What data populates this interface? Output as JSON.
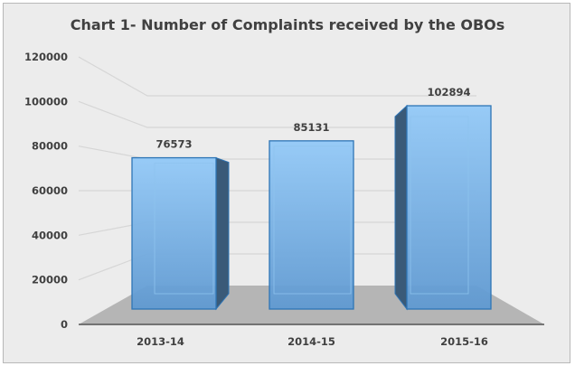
{
  "chart_data": {
    "type": "bar",
    "title": "Chart 1- Number of Complaints received by the OBOs",
    "categories": [
      "2013-14",
      "2014-15",
      "2015-16"
    ],
    "values": [
      76573,
      85131,
      102894
    ],
    "data_labels": [
      "76573",
      "85131",
      "102894"
    ],
    "xlabel": "",
    "ylabel": "",
    "ylim": [
      0,
      120000
    ],
    "yticks": [
      "0",
      "20000",
      "40000",
      "60000",
      "80000",
      "100000",
      "120000"
    ],
    "grid": true,
    "legend": "none",
    "style": "3d-column",
    "colors": {
      "bar": "#6fa8dc",
      "bar_light": "#8cc4f5",
      "bar_edge": "#2e75b6",
      "bar_side": "#3a5a78",
      "floor": "#b5b5b5",
      "background": "#ececec"
    }
  }
}
